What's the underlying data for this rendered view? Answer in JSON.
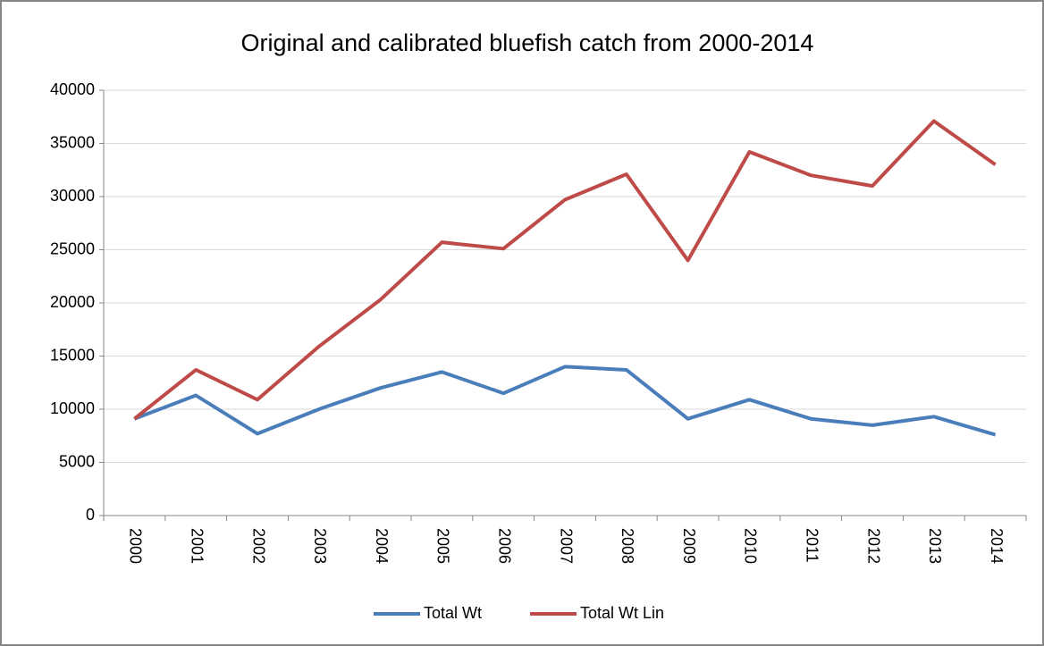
{
  "chart_data": {
    "type": "line",
    "title": "Original and calibrated bluefish catch from 2000-2014",
    "categories": [
      "2000",
      "2001",
      "2002",
      "2003",
      "2004",
      "2005",
      "2006",
      "2007",
      "2008",
      "2009",
      "2010",
      "2011",
      "2012",
      "2013",
      "2014"
    ],
    "series": [
      {
        "name": "Total Wt",
        "color": "#4a7ebb",
        "values": [
          9100,
          11300,
          7700,
          10000,
          12000,
          13500,
          11500,
          14000,
          13700,
          9100,
          10900,
          9100,
          8500,
          9300,
          7600
        ]
      },
      {
        "name": "Total Wt Lin",
        "color": "#be4b48",
        "values": [
          9100,
          13700,
          10900,
          15900,
          20300,
          25700,
          25100,
          29700,
          32100,
          24000,
          34200,
          32000,
          31000,
          37100,
          33000
        ]
      }
    ],
    "ylim": [
      0,
      40000
    ],
    "yticks": [
      0,
      5000,
      10000,
      15000,
      20000,
      25000,
      30000,
      35000,
      40000
    ],
    "grid": true,
    "legend": "bottom"
  }
}
